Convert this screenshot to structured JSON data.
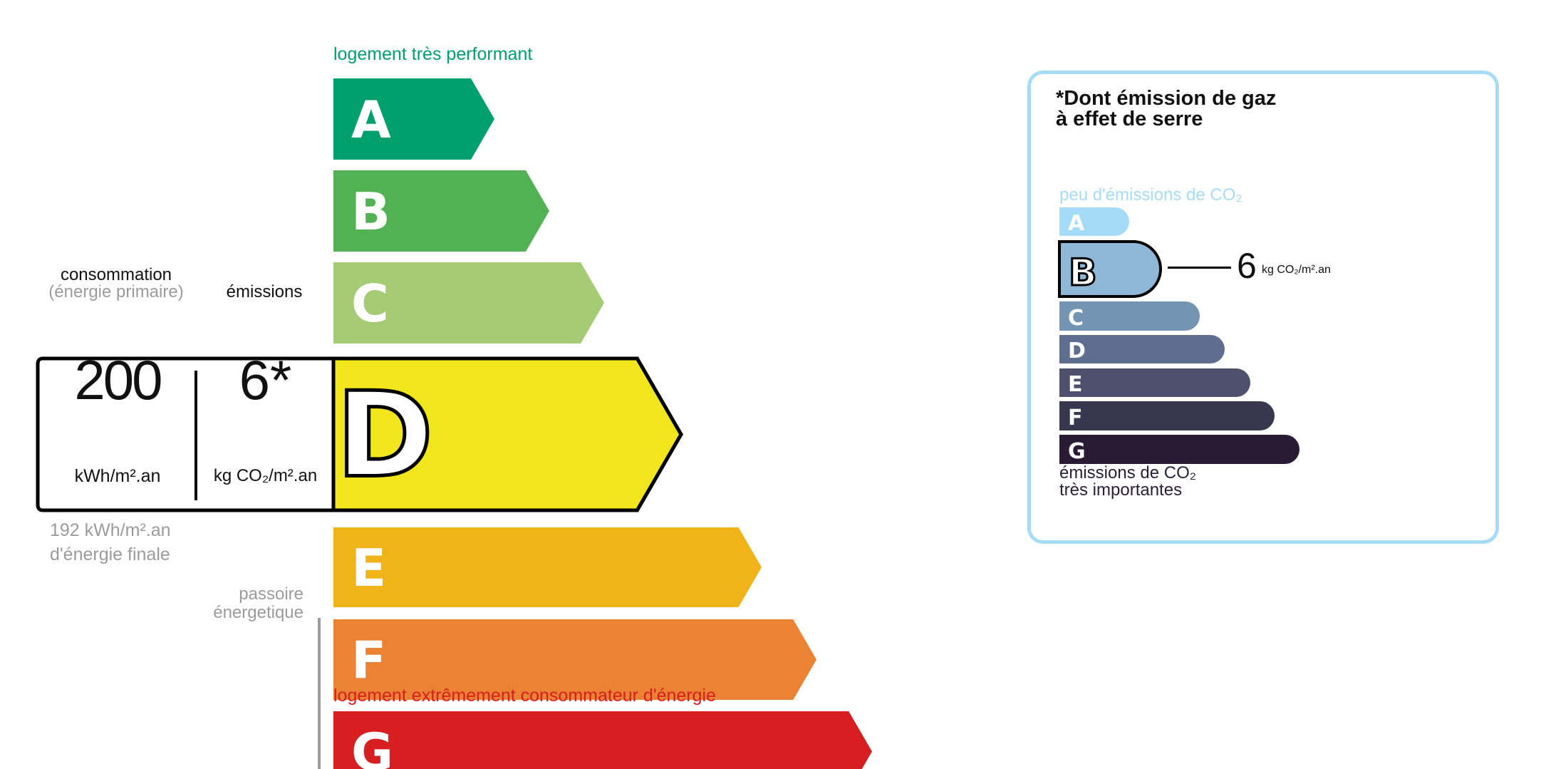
{
  "energy": {
    "top_label": "logement très performant",
    "bottom_label": "logement extrêmement consommateur d'énergie",
    "consumption_label": "consommation",
    "consumption_sublabel": "(énergie primaire)",
    "emissions_label": "émissions",
    "consumption_value": "200",
    "consumption_unit": "kWh/m².an",
    "emissions_value": "6*",
    "emissions_unit": "kg CO₂/m².an",
    "final_energy_value": "192 kWh/m².an",
    "final_energy_label": "d'énergie finale",
    "passoire_line1": "passoire",
    "passoire_line2": "énergetique",
    "current_class": "D",
    "classes": [
      {
        "letter": "A",
        "color": "#00a06d"
      },
      {
        "letter": "B",
        "color": "#52b153"
      },
      {
        "letter": "C",
        "color": "#a5cc74"
      },
      {
        "letter": "D",
        "color": "#f1e51c"
      },
      {
        "letter": "E",
        "color": "#f0b41a"
      },
      {
        "letter": "F",
        "color": "#eb8234"
      },
      {
        "letter": "G",
        "color": "#d71e20"
      }
    ],
    "top_color": "#00a06d",
    "bottom_color": "#d71e20"
  },
  "ges": {
    "title_line1": "*Dont émission de gaz",
    "title_line2": "à effet de serre",
    "top_label": "peu d'émissions de CO₂",
    "bottom_line1": "émissions de CO₂",
    "bottom_line2": "très importantes",
    "current_class": "B",
    "value": "6",
    "unit": "kg CO₂/m².an",
    "classes": [
      {
        "letter": "A",
        "color": "#a4dbf6"
      },
      {
        "letter": "B",
        "color": "#8fb8d8"
      },
      {
        "letter": "C",
        "color": "#7494b4"
      },
      {
        "letter": "D",
        "color": "#5f6e8f"
      },
      {
        "letter": "E",
        "color": "#4e506e"
      },
      {
        "letter": "F",
        "color": "#393650"
      },
      {
        "letter": "G",
        "color": "#2a1b34"
      }
    ],
    "border_color": "#a6dcf5"
  }
}
